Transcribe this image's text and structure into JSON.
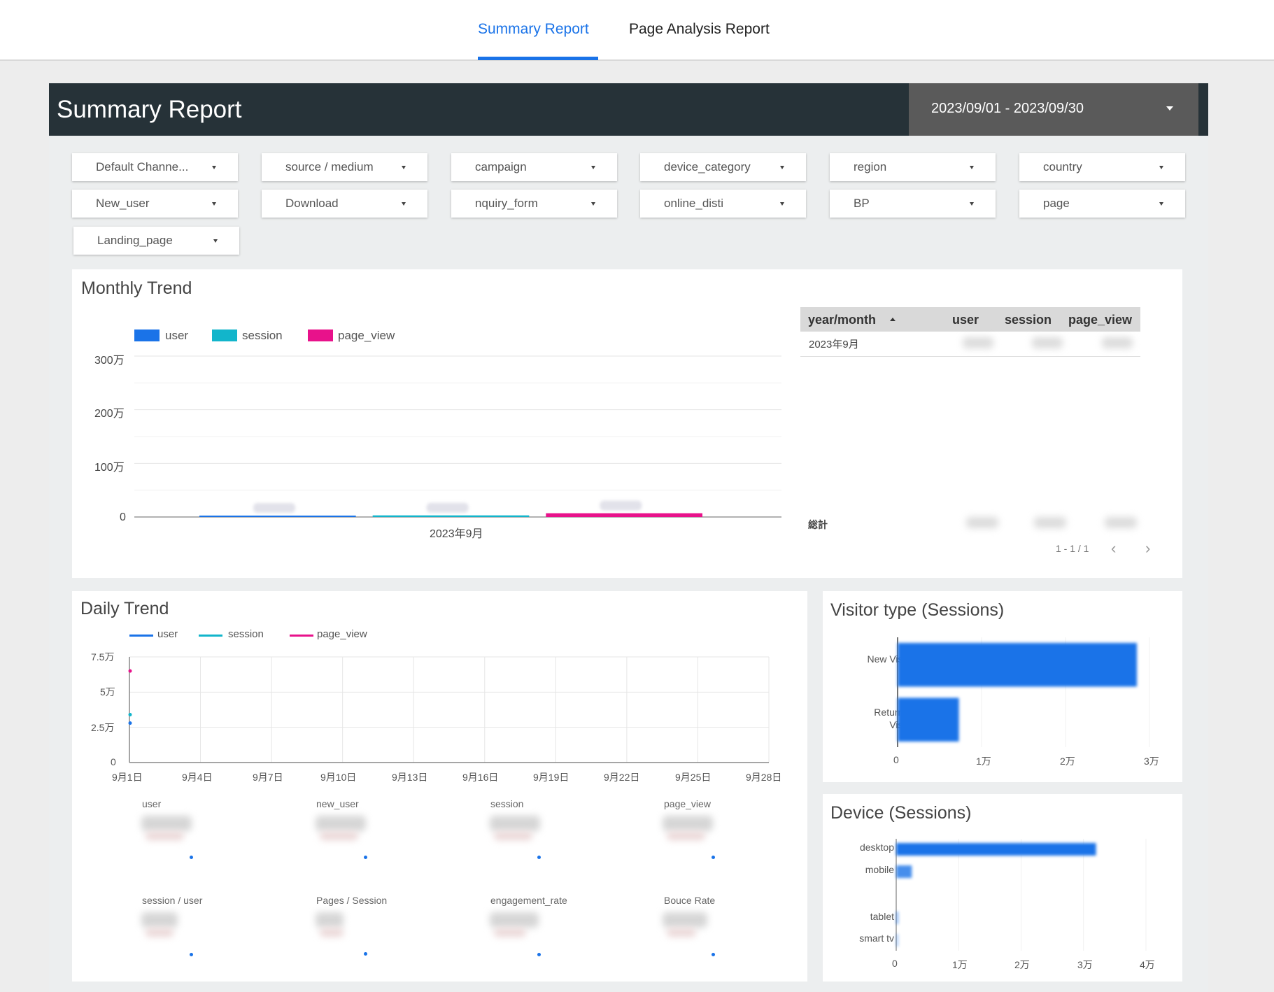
{
  "nav": {
    "tabs": [
      {
        "label": "Summary Report",
        "active": true
      },
      {
        "label": "Page Analysis Report",
        "active": false
      }
    ]
  },
  "header": {
    "title": "Summary Report",
    "date_range": "2023/09/01 - 2023/09/30"
  },
  "filters": [
    "Default Channe...",
    "source / medium",
    "campaign",
    "device_category",
    "region",
    "country",
    "New_user",
    "Download",
    "nquiry_form",
    "online_disti",
    "BP",
    "page",
    "Landing_page"
  ],
  "colors": {
    "user": "#1a73e8",
    "session": "#12b5cb",
    "page_view": "#e8128b",
    "header_bg": "#263238",
    "accent": "#1a73e8"
  },
  "monthly": {
    "title": "Monthly Trend",
    "legend": [
      "user",
      "session",
      "page_view"
    ],
    "y_ticks": [
      "300万",
      "200万",
      "100万",
      "0"
    ],
    "x_label": "2023年9月",
    "table": {
      "headers": [
        "year/month",
        "user",
        "session",
        "page_view"
      ],
      "row_label": "2023年9月",
      "total_label": "総計",
      "pager": "1 - 1 / 1"
    }
  },
  "daily": {
    "title": "Daily Trend",
    "legend": [
      "user",
      "session",
      "page_view"
    ],
    "y_ticks": [
      "7.5万",
      "5万",
      "2.5万",
      "0"
    ],
    "x_ticks": [
      "9月1日",
      "9月4日",
      "9月7日",
      "9月10日",
      "9月13日",
      "9月16日",
      "9月19日",
      "9月22日",
      "9月25日",
      "9月28日"
    ],
    "metrics": [
      "user",
      "new_user",
      "session",
      "page_view",
      "session / user",
      "Pages / Session",
      "engagement_rate",
      "Bouce Rate"
    ]
  },
  "visitor": {
    "title": "Visitor type (Sessions)",
    "bars": [
      {
        "label_line1": "New Visitor",
        "label_line2": "",
        "value": 2.85
      },
      {
        "label_line1": "Returning",
        "label_line2": "Visitor",
        "value": 0.73
      }
    ],
    "x_ticks": [
      "0",
      "1万",
      "2万",
      "3万"
    ]
  },
  "device": {
    "title": "Device (Sessions)",
    "bars": [
      {
        "label": "desktop",
        "value": 3.2
      },
      {
        "label": "mobile",
        "value": 0.25
      },
      {
        "label": "tablet",
        "value": 0.03
      },
      {
        "label": "smart tv",
        "value": 0.01
      }
    ],
    "x_ticks": [
      "0",
      "1万",
      "2万",
      "3万",
      "4万"
    ]
  },
  "chart_data": [
    {
      "type": "bar",
      "title": "Monthly Trend",
      "categories": [
        "2023年9月"
      ],
      "series": [
        {
          "name": "user",
          "values": [
            25000
          ]
        },
        {
          "name": "session",
          "values": [
            30000
          ]
        },
        {
          "name": "page_view",
          "values": [
            70000
          ]
        }
      ],
      "ylim": [
        0,
        3000000
      ]
    },
    {
      "type": "line",
      "title": "Daily Trend",
      "x": [
        "9月1日"
      ],
      "series": [
        {
          "name": "user",
          "values": [
            28000
          ]
        },
        {
          "name": "session",
          "values": [
            34000
          ]
        },
        {
          "name": "page_view",
          "values": [
            65000
          ]
        }
      ],
      "ylim": [
        0,
        75000
      ]
    },
    {
      "type": "bar",
      "title": "Visitor type (Sessions)",
      "categories": [
        "New Visitor",
        "Returning Visitor"
      ],
      "values": [
        28500,
        7300
      ],
      "xlim": [
        0,
        30000
      ]
    },
    {
      "type": "bar",
      "title": "Device (Sessions)",
      "categories": [
        "desktop",
        "mobile",
        "tablet",
        "smart tv"
      ],
      "values": [
        32000,
        2500,
        300,
        100
      ],
      "xlim": [
        0,
        40000
      ]
    }
  ]
}
